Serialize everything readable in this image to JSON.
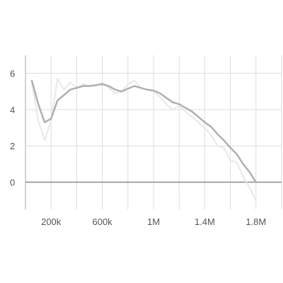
{
  "chart_data": {
    "type": "line",
    "title": "",
    "xlabel": "",
    "ylabel": "",
    "xlim": [
      0,
      2000000
    ],
    "ylim": [
      -1.5,
      7
    ],
    "grid": true,
    "x_ticks": [
      {
        "value": 200000,
        "label": "200k"
      },
      {
        "value": 600000,
        "label": "600k"
      },
      {
        "value": 1000000,
        "label": "1M"
      },
      {
        "value": 1400000,
        "label": "1.4M"
      },
      {
        "value": 1800000,
        "label": "1.8M"
      }
    ],
    "x_grid": [
      0,
      200000,
      400000,
      600000,
      800000,
      1000000,
      1200000,
      1400000,
      1600000,
      1800000,
      2000000
    ],
    "y_ticks": [
      {
        "value": 0,
        "label": "0"
      },
      {
        "value": 2,
        "label": "2"
      },
      {
        "value": 4,
        "label": "4"
      },
      {
        "value": 6,
        "label": "6"
      }
    ],
    "series": [
      {
        "name": "",
        "role": "raw",
        "color": "#e8e8e8",
        "x": [
          50000,
          100000,
          150000,
          200000,
          250000,
          300000,
          350000,
          400000,
          450000,
          500000,
          550000,
          600000,
          650000,
          700000,
          750000,
          800000,
          850000,
          900000,
          950000,
          1000000,
          1050000,
          1100000,
          1150000,
          1200000,
          1250000,
          1300000,
          1350000,
          1400000,
          1450000,
          1500000,
          1550000,
          1600000,
          1650000,
          1700000,
          1750000,
          1800000
        ],
        "values": [
          5.5,
          3.4,
          2.3,
          3.4,
          5.7,
          5.1,
          5.5,
          5.2,
          5.4,
          5.3,
          5.3,
          5.5,
          5.2,
          4.9,
          5.0,
          5.4,
          5.6,
          5.2,
          5.1,
          5.0,
          4.7,
          4.3,
          4.0,
          4.2,
          3.9,
          3.6,
          3.3,
          3.0,
          2.6,
          2.0,
          1.9,
          1.2,
          1.1,
          0.3,
          -0.3,
          -1.0
        ]
      },
      {
        "name": "",
        "role": "smoothed",
        "color": "#b0b0b0",
        "x": [
          50000,
          100000,
          150000,
          200000,
          250000,
          300000,
          350000,
          400000,
          450000,
          500000,
          550000,
          600000,
          650000,
          700000,
          750000,
          800000,
          850000,
          900000,
          950000,
          1000000,
          1050000,
          1100000,
          1150000,
          1200000,
          1250000,
          1300000,
          1350000,
          1400000,
          1450000,
          1500000,
          1550000,
          1600000,
          1650000,
          1700000,
          1750000,
          1800000
        ],
        "values": [
          5.6,
          4.3,
          3.3,
          3.5,
          4.5,
          4.8,
          5.1,
          5.2,
          5.3,
          5.3,
          5.35,
          5.4,
          5.3,
          5.1,
          5.0,
          5.15,
          5.3,
          5.2,
          5.1,
          5.05,
          4.9,
          4.65,
          4.4,
          4.3,
          4.1,
          3.9,
          3.6,
          3.3,
          3.05,
          2.65,
          2.3,
          1.9,
          1.55,
          1.0,
          0.55,
          0.0
        ]
      }
    ]
  }
}
